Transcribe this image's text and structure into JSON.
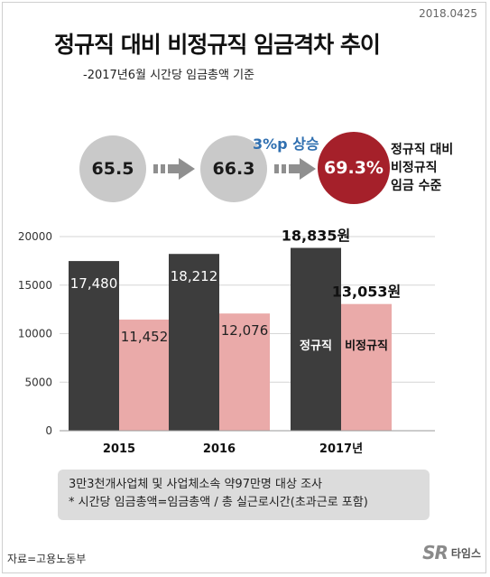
{
  "header": {
    "date": "2018.0425",
    "title": "정규직 대비 비정규직 임금격차 추이",
    "subtitle": "-2017년6월 시간당 임금총액 기준"
  },
  "ratio": {
    "values": [
      "65.5",
      "66.3",
      "69.3%"
    ],
    "increase_label": "3%p 상승",
    "side_label_lines": [
      "정규직 대비",
      "비정규직",
      "임금 수준"
    ],
    "colors": {
      "grey": "#c9c9c9",
      "red": "#a5202a",
      "arrow": "#8f8f8f"
    }
  },
  "chart_data": {
    "type": "bar",
    "categories": [
      "2015",
      "2016",
      "2017년"
    ],
    "series": [
      {
        "name": "정규직",
        "values": [
          17480,
          18212,
          18835
        ],
        "color": "#3d3d3d"
      },
      {
        "name": "비정규직",
        "values": [
          11452,
          12076,
          13053
        ],
        "color": "#eaaaa9"
      }
    ],
    "data_labels": [
      [
        "17,480",
        "18,212",
        "18,835원"
      ],
      [
        "11,452",
        "12,076",
        "13,053원"
      ]
    ],
    "yticks": [
      0,
      5000,
      10000,
      15000,
      20000
    ],
    "ylim": [
      0,
      20000
    ],
    "grid": true,
    "legend": "inside-bars"
  },
  "notes": [
    "3만3천개사업체 및 사업체소속 약97만명 대상 조사",
    "* 시간당 임금총액=임금총액 / 총 실근로시간(초과근로 포함)"
  ],
  "footer": {
    "source": "자료=고용노동부",
    "logo_mark": "SR",
    "logo_text": "타임스"
  }
}
